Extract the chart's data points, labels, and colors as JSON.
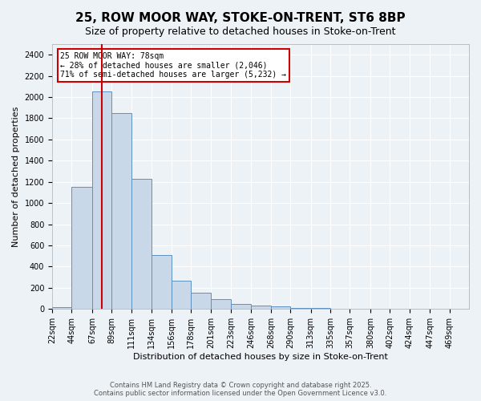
{
  "title": "25, ROW MOOR WAY, STOKE-ON-TRENT, ST6 8BP",
  "subtitle": "Size of property relative to detached houses in Stoke-on-Trent",
  "xlabel": "Distribution of detached houses by size in Stoke-on-Trent",
  "ylabel": "Number of detached properties",
  "bar_values": [
    20,
    1150,
    2050,
    1850,
    1230,
    510,
    270,
    155,
    90,
    45,
    35,
    25,
    10,
    10,
    5,
    5,
    3,
    3,
    2,
    2,
    1
  ],
  "bin_edges": [
    22,
    44,
    67,
    89,
    111,
    134,
    156,
    178,
    201,
    223,
    246,
    268,
    290,
    313,
    335,
    357,
    380,
    402,
    424,
    447,
    469,
    491
  ],
  "bin_labels": [
    "22sqm",
    "44sqm",
    "67sqm",
    "89sqm",
    "111sqm",
    "134sqm",
    "156sqm",
    "178sqm",
    "201sqm",
    "223sqm",
    "246sqm",
    "268sqm",
    "290sqm",
    "313sqm",
    "335sqm",
    "357sqm",
    "380sqm",
    "402sqm",
    "424sqm",
    "447sqm",
    "469sqm"
  ],
  "bar_color": "#c8d8e8",
  "bar_edge_color": "#6090c0",
  "red_line_x": 78,
  "annotation_text": "25 ROW MOOR WAY: 78sqm\n← 28% of detached houses are smaller (2,046)\n71% of semi-detached houses are larger (5,232) →",
  "annotation_box_color": "#ffffff",
  "annotation_box_edge": "#cc0000",
  "ylim": [
    0,
    2500
  ],
  "yticks": [
    0,
    200,
    400,
    600,
    800,
    1000,
    1200,
    1400,
    1600,
    1800,
    2000,
    2200,
    2400
  ],
  "background_color": "#edf2f7",
  "footer_line1": "Contains HM Land Registry data © Crown copyright and database right 2025.",
  "footer_line2": "Contains public sector information licensed under the Open Government Licence v3.0.",
  "grid_color": "#ffffff",
  "title_fontsize": 11,
  "subtitle_fontsize": 9,
  "axis_fontsize": 8,
  "tick_fontsize": 7
}
